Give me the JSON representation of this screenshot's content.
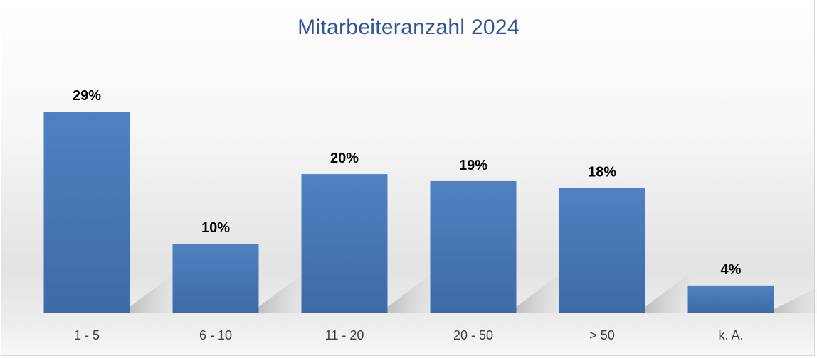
{
  "chart_data": {
    "type": "bar",
    "title": "Mitarbeiteranzahl 2024",
    "categories": [
      "1 - 5",
      "6 - 10",
      "11 - 20",
      "20 - 50",
      "> 50",
      "k. A."
    ],
    "values": [
      29,
      10,
      20,
      19,
      18,
      4
    ],
    "value_labels": [
      "29%",
      "10%",
      "20%",
      "19%",
      "18%",
      "4%"
    ],
    "unit": "%",
    "xlabel": "",
    "ylabel": "",
    "ylim": [
      0,
      29
    ],
    "grid": false,
    "legend": "none",
    "bar_color": "#4a7bbb",
    "title_color": "#2f5597"
  }
}
